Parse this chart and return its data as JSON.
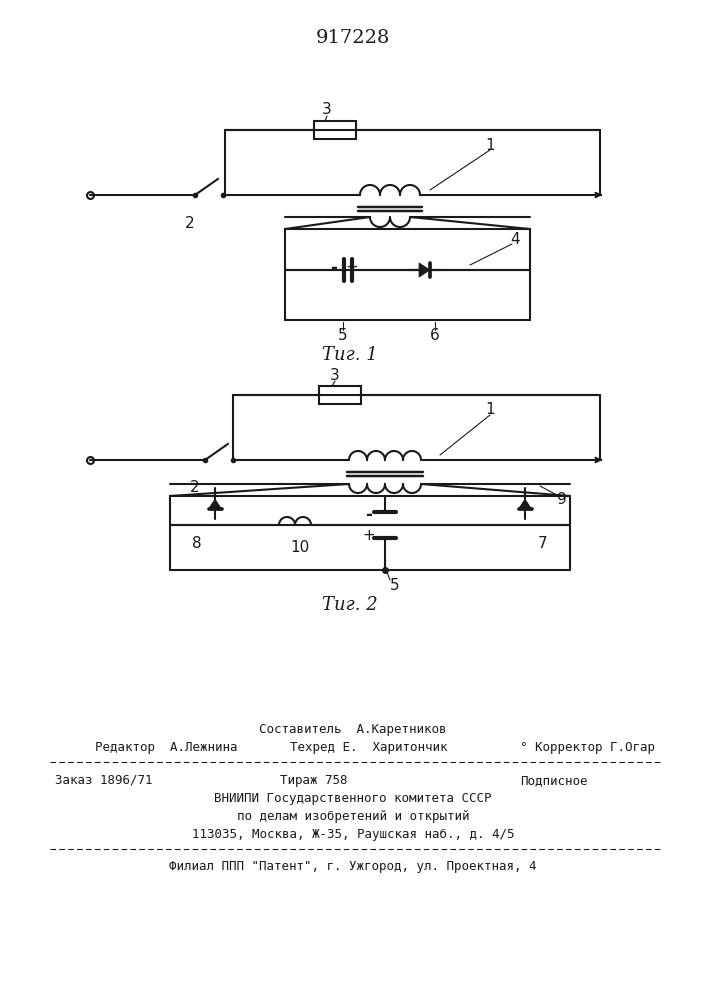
{
  "title": "917228",
  "bg_color": "#ffffff",
  "line_color": "#1a1a1a",
  "fig1_label": "Τиг. 1",
  "fig2_label": "Τиг. 2",
  "footer": {
    "line1_center": "Составитель  А.Каретников",
    "line2_left": "Редактор  А.Лежнина",
    "line2_center": "Техред Е.  Харитончик",
    "line2_right": "° Корректор Г.Огар",
    "line3_left": "Заказ 1896/71",
    "line3_center": "Тираж 758",
    "line3_right": "Подписное",
    "line4": "ВНИИПИ Государственного комитета СССР",
    "line5": "по делам изобретений и открытий",
    "line6": "113035, Москва, Ж-35, Раушская наб., д. 4/5",
    "line7": "Филиал ППП \"Патент\", г. Ужгород, ул. Проектная, 4"
  }
}
